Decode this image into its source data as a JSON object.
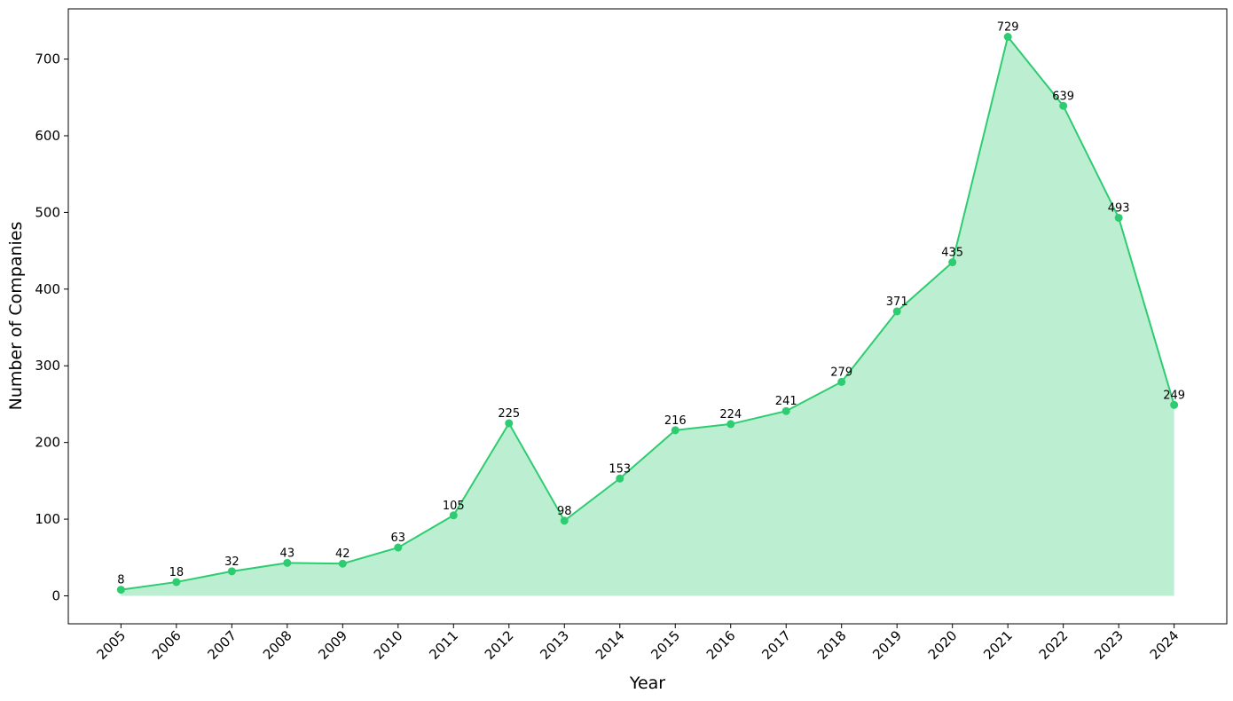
{
  "chart_data": {
    "type": "area",
    "x_label": "Year",
    "y_label": "Number of Companies",
    "categories": [
      "2005",
      "2006",
      "2007",
      "2008",
      "2009",
      "2010",
      "2011",
      "2012",
      "2013",
      "2014",
      "2015",
      "2016",
      "2017",
      "2018",
      "2019",
      "2020",
      "2021",
      "2022",
      "2023",
      "2024"
    ],
    "values": [
      8,
      18,
      32,
      43,
      42,
      63,
      105,
      225,
      98,
      153,
      216,
      224,
      241,
      279,
      371,
      435,
      729,
      639,
      493,
      249
    ],
    "color": "#2ecc71",
    "ylim": [
      -36.45,
      765.45
    ],
    "yticks": [
      0,
      100,
      200,
      300,
      400,
      500,
      600,
      700
    ],
    "grid": false
  }
}
